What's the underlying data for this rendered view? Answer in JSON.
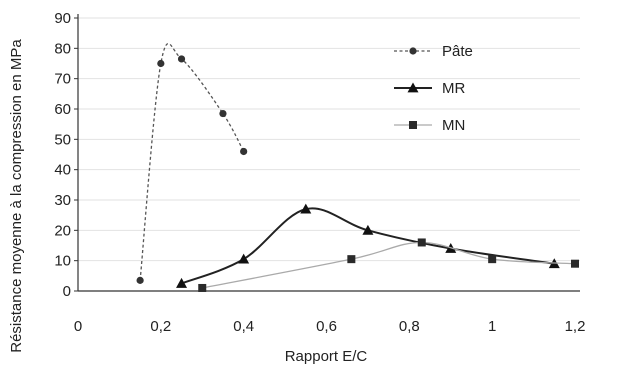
{
  "chart_data": {
    "type": "line",
    "title": "",
    "xlabel": "Rapport E/C",
    "ylabel": "Résistance moyenne à la compression en MPa",
    "xlim": [
      0,
      1.2
    ],
    "ylim": [
      0,
      90
    ],
    "x_ticks": [
      {
        "value": 0,
        "label": "0"
      },
      {
        "value": 0.2,
        "label": "0,2"
      },
      {
        "value": 0.4,
        "label": "0,4"
      },
      {
        "value": 0.6,
        "label": "0,6"
      },
      {
        "value": 0.8,
        "label": "0,8"
      },
      {
        "value": 1.0,
        "label": "1"
      },
      {
        "value": 1.2,
        "label": "1,2"
      }
    ],
    "y_ticks": [
      0,
      10,
      20,
      30,
      40,
      50,
      60,
      70,
      80,
      90
    ],
    "legend_position": "top-right",
    "series": [
      {
        "name": "Pâte",
        "marker": "circle",
        "line": "dashed",
        "color": "#555555",
        "points": [
          [
            0.15,
            3.5
          ],
          [
            0.2,
            75
          ],
          [
            0.25,
            76.5
          ],
          [
            0.35,
            58.5
          ],
          [
            0.4,
            46
          ]
        ]
      },
      {
        "name": "MR",
        "marker": "triangle",
        "line": "solid",
        "color": "#222222",
        "points": [
          [
            0.25,
            2.5
          ],
          [
            0.4,
            10.5
          ],
          [
            0.55,
            27
          ],
          [
            0.7,
            20
          ],
          [
            0.9,
            14
          ],
          [
            1.15,
            9
          ]
        ]
      },
      {
        "name": "MN",
        "marker": "square",
        "line": "solid-light",
        "color": "#aaaaaa",
        "points": [
          [
            0.3,
            1
          ],
          [
            0.66,
            10.5
          ],
          [
            0.83,
            16
          ],
          [
            1.0,
            10.5
          ],
          [
            1.2,
            9
          ]
        ]
      }
    ]
  }
}
